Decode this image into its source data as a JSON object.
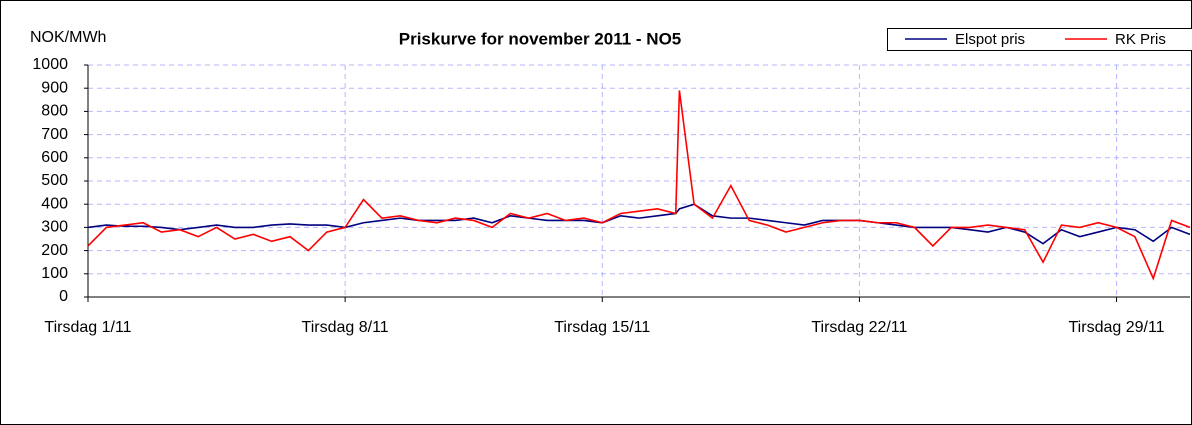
{
  "chart_data": {
    "type": "line",
    "title": "Priskurve for november 2011 - NO5",
    "y_label": "NOK/MWh",
    "x": [
      1,
      1.5,
      2,
      2.5,
      3,
      3.5,
      4,
      4.5,
      5,
      5.5,
      6,
      6.5,
      7,
      7.5,
      8,
      8.5,
      9,
      9.5,
      10,
      10.5,
      11,
      11.5,
      12,
      12.5,
      13,
      13.5,
      14,
      14.5,
      15,
      15.5,
      16,
      16.5,
      17,
      17.1,
      17.5,
      18,
      18.5,
      19,
      19.5,
      20,
      20.5,
      21,
      21.5,
      22,
      22.5,
      23,
      23.5,
      24,
      24.5,
      25,
      25.5,
      26,
      26.5,
      27,
      27.5,
      28,
      28.5,
      29,
      29.5,
      30,
      30.5,
      31
    ],
    "series": [
      {
        "name": "Elspot pris",
        "color": "#000080",
        "values": [
          300,
          310,
          305,
          305,
          300,
          290,
          300,
          310,
          300,
          300,
          310,
          315,
          310,
          310,
          300,
          320,
          330,
          340,
          330,
          330,
          330,
          340,
          320,
          350,
          340,
          330,
          330,
          330,
          320,
          350,
          340,
          350,
          360,
          380,
          400,
          350,
          340,
          340,
          330,
          320,
          310,
          330,
          330,
          330,
          320,
          310,
          300,
          300,
          300,
          290,
          280,
          300,
          280,
          230,
          290,
          260,
          280,
          300,
          290,
          240,
          300,
          270
        ]
      },
      {
        "name": "RK Pris",
        "color": "#ff0000",
        "values": [
          220,
          300,
          310,
          320,
          280,
          290,
          260,
          300,
          250,
          270,
          240,
          260,
          200,
          280,
          300,
          420,
          340,
          350,
          330,
          320,
          340,
          330,
          300,
          360,
          340,
          360,
          330,
          340,
          320,
          360,
          370,
          380,
          360,
          890,
          400,
          340,
          480,
          330,
          310,
          280,
          300,
          320,
          330,
          330,
          320,
          320,
          300,
          220,
          300,
          300,
          310,
          300,
          290,
          150,
          310,
          300,
          320,
          300,
          260,
          80,
          330,
          300
        ]
      }
    ],
    "xlim": [
      1,
      31
    ],
    "xticks": [
      {
        "value": 1,
        "label": "Tirsdag 1/11"
      },
      {
        "value": 8,
        "label": "Tirsdag 8/11"
      },
      {
        "value": 15,
        "label": "Tirsdag 15/11"
      },
      {
        "value": 22,
        "label": "Tirsdag 22/11"
      },
      {
        "value": 29,
        "label": "Tirsdag 29/11"
      }
    ],
    "ylim": [
      0,
      1000
    ],
    "yticks": [
      0,
      100,
      200,
      300,
      400,
      500,
      600,
      700,
      800,
      900,
      1000
    ],
    "grid": true
  }
}
